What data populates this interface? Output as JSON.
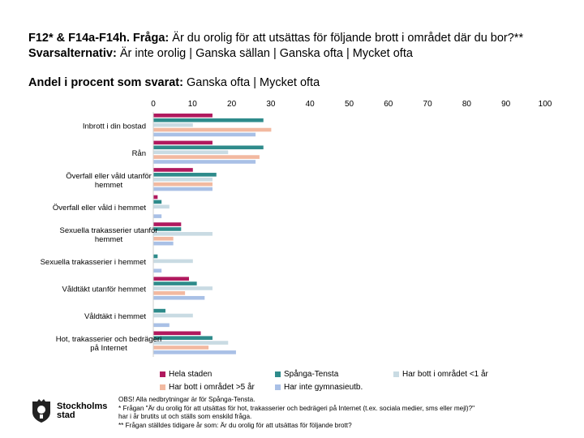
{
  "header": {
    "title_bold": "F12* & F14a-F14h. Fråga:",
    "title_text": " Är du orolig för att utsättas för följande brott i området där du bor?**",
    "title_bold2": " Svarsalternativ:",
    "title_text2": " Är inte orolig | Ganska sällan | Ganska ofta | Mycket ofta",
    "subtitle_bold": "Andel i procent som svarat:",
    "subtitle_text": " Ganska ofta | Mycket ofta"
  },
  "chart_data": {
    "type": "bar",
    "orientation": "horizontal",
    "xlim": [
      0,
      100
    ],
    "xticks": [
      0,
      10,
      20,
      30,
      40,
      50,
      60,
      70,
      80,
      90,
      100
    ],
    "categories": [
      "Inbrott i din bostad",
      "Rån",
      "Överfall eller våld utanför hemmet",
      "Överfall eller våld i hemmet",
      "Sexuella trakasserier utanför hemmet",
      "Sexuella trakasserier i hemmet",
      "Våldtäkt utanför hemmet",
      "Våldtäkt i hemmet",
      "Hot, trakasserier och bedrägeri på Internet"
    ],
    "category_lines": [
      [
        "Inbrott i din bostad"
      ],
      [
        "Rån"
      ],
      [
        "Överfall eller våld utanför",
        "hemmet"
      ],
      [
        "Överfall eller våld i hemmet"
      ],
      [
        "Sexuella trakasserier utanför",
        "hemmet"
      ],
      [
        "Sexuella trakasserier i hemmet"
      ],
      [
        "Våldtäkt utanför hemmet"
      ],
      [
        "Våldtäkt i hemmet"
      ],
      [
        "Hot, trakasserier och bedrägeri",
        "på Internet"
      ]
    ],
    "series": [
      {
        "name": "Hela staden",
        "color": "#b0195e",
        "values": [
          15,
          15,
          10,
          1,
          7,
          0,
          9,
          0,
          12
        ]
      },
      {
        "name": "Spånga-Tensta",
        "color": "#2e8b8b",
        "values": [
          28,
          28,
          16,
          2,
          7,
          1,
          11,
          3,
          15
        ]
      },
      {
        "name": "Har bott i området <1 år",
        "color": "#c9dbe3",
        "values": [
          10,
          19,
          15,
          4,
          15,
          10,
          15,
          10,
          19
        ]
      },
      {
        "name": "Har bott i området >5 år",
        "color": "#f2b9a0",
        "values": [
          30,
          27,
          15,
          0,
          5,
          0,
          8,
          0,
          14
        ]
      },
      {
        "name": "Har inte gymnasieutb.",
        "color": "#a9c0e6",
        "values": [
          26,
          26,
          15,
          2,
          5,
          2,
          13,
          4,
          21
        ]
      }
    ]
  },
  "footer": {
    "lines": [
      "OBS! Alla nedbrytningar är för Spånga-Tensta.",
      "* Frågan \"Är du orolig för att utsättas för hot, trakasserier och bedrägeri på Internet (t.ex. sociala medier, sms eller mejl)?\"",
      "har i år brutits ut och ställs som enskild fråga.",
      "** Frågan ställdes tidigare år som: Är du orolig för att utsättas för följande brott?"
    ],
    "logo_line1": "Stockholms",
    "logo_line2": "stad"
  }
}
